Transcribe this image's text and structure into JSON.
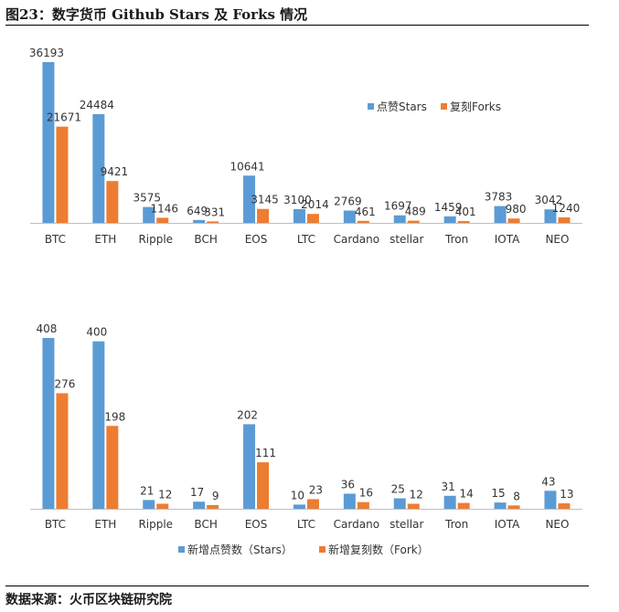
{
  "figure": {
    "title": "图23：数字货币 Github Stars 及 Forks 情况",
    "source": "数据来源：火币区块链研究院"
  },
  "colors": {
    "series1": "#5b9bd5",
    "series2": "#ed7d31",
    "axis": "#bfbfbf"
  },
  "chart_data": [
    {
      "type": "bar",
      "categories": [
        "BTC",
        "ETH",
        "Ripple",
        "BCH",
        "EOS",
        "LTC",
        "Cardano",
        "stellar",
        "Tron",
        "IOTA",
        "NEO"
      ],
      "series": [
        {
          "name": "点赞Stars",
          "values": [
            36193,
            24484,
            3575,
            649,
            10641,
            3100,
            2769,
            1697,
            1459,
            3783,
            3042
          ]
        },
        {
          "name": "复刻Forks",
          "values": [
            21671,
            9421,
            1146,
            331,
            3145,
            2014,
            461,
            489,
            401,
            980,
            1240
          ]
        }
      ],
      "ylim": [
        0,
        36193
      ],
      "grid": false,
      "legend_position": "right"
    },
    {
      "type": "bar",
      "categories": [
        "BTC",
        "ETH",
        "Ripple",
        "BCH",
        "EOS",
        "LTC",
        "Cardano",
        "stellar",
        "Tron",
        "IOTA",
        "NEO"
      ],
      "series": [
        {
          "name": "新增点赞数（Stars）",
          "values": [
            408,
            400,
            21,
            17,
            202,
            10,
            36,
            25,
            31,
            15,
            43
          ]
        },
        {
          "name": "新增复刻数（Fork）",
          "values": [
            276,
            198,
            12,
            9,
            111,
            23,
            16,
            12,
            14,
            8,
            13
          ]
        }
      ],
      "ylim": [
        0,
        408
      ],
      "grid": false,
      "legend_position": "bottom"
    }
  ]
}
